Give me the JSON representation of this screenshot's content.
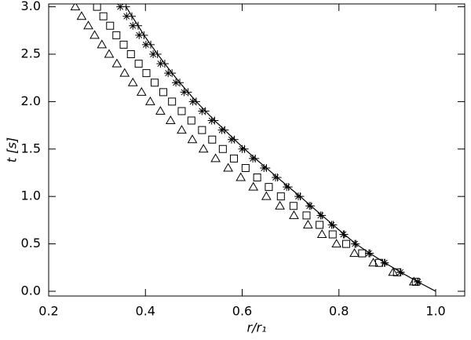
{
  "chart_data": {
    "type": "scatter",
    "xlabel": "r/r₁",
    "ylabel": "t [s]",
    "xlim": [
      0.2,
      1.06
    ],
    "ylim": [
      -0.05,
      3.03
    ],
    "xticks": [
      0.2,
      0.4,
      0.6,
      0.8,
      {
        "value": 1,
        "label": "1.0"
      }
    ],
    "yticks": [
      {
        "value": 0,
        "label": "0.0"
      },
      0.5,
      {
        "value": 1,
        "label": "1.0"
      },
      1.5,
      {
        "value": 2,
        "label": "2.0"
      },
      2.5,
      {
        "value": 3,
        "label": "3.0"
      }
    ],
    "series": [
      {
        "marker": "line",
        "color": "#000000",
        "x": [
          1.0,
          0.963,
          0.928,
          0.895,
          0.864,
          0.835,
          0.811,
          0.788,
          0.765,
          0.742,
          0.72,
          0.696,
          0.673,
          0.65,
          0.627,
          0.605,
          0.584,
          0.564,
          0.543,
          0.524,
          0.505,
          0.488,
          0.471,
          0.455,
          0.44,
          0.425,
          0.411,
          0.397,
          0.385,
          0.372,
          0.36
        ],
        "y": [
          0,
          0.1,
          0.2,
          0.3,
          0.4,
          0.5,
          0.6,
          0.7,
          0.8,
          0.9,
          1.0,
          1.1,
          1.2,
          1.3,
          1.4,
          1.5,
          1.6,
          1.7,
          1.8,
          1.9,
          2.0,
          2.1,
          2.2,
          2.3,
          2.4,
          2.5,
          2.6,
          2.7,
          2.8,
          2.9,
          3.0
        ]
      },
      {
        "marker": "plus",
        "color": "#000000",
        "x": [
          0.963,
          0.928,
          0.895,
          0.864,
          0.835,
          0.811,
          0.788,
          0.765,
          0.742,
          0.72,
          0.696,
          0.673,
          0.65,
          0.627,
          0.605,
          0.584,
          0.564,
          0.543,
          0.524,
          0.505,
          0.488,
          0.471,
          0.455,
          0.44,
          0.425,
          0.411,
          0.397,
          0.385,
          0.372,
          0.36
        ],
        "y": [
          0.1,
          0.2,
          0.3,
          0.4,
          0.5,
          0.6,
          0.7,
          0.8,
          0.9,
          1.0,
          1.1,
          1.2,
          1.3,
          1.4,
          1.5,
          1.6,
          1.7,
          1.8,
          1.9,
          2.0,
          2.1,
          2.2,
          2.3,
          2.4,
          2.5,
          2.6,
          2.7,
          2.8,
          2.9,
          3.0
        ]
      },
      {
        "marker": "asterisk",
        "color": "#000000",
        "x": [
          0.963,
          0.927,
          0.894,
          0.862,
          0.833,
          0.809,
          0.785,
          0.762,
          0.739,
          0.716,
          0.692,
          0.669,
          0.645,
          0.622,
          0.6,
          0.578,
          0.558,
          0.537,
          0.517,
          0.498,
          0.48,
          0.463,
          0.447,
          0.431,
          0.416,
          0.401,
          0.387,
          0.374,
          0.361,
          0.348
        ],
        "y": [
          0.1,
          0.2,
          0.3,
          0.4,
          0.5,
          0.6,
          0.7,
          0.8,
          0.9,
          1.0,
          1.1,
          1.2,
          1.3,
          1.4,
          1.5,
          1.6,
          1.7,
          1.8,
          1.9,
          2.0,
          2.1,
          2.2,
          2.3,
          2.4,
          2.5,
          2.6,
          2.7,
          2.8,
          2.9,
          3.0
        ]
      },
      {
        "marker": "square",
        "color": "#000000",
        "x": [
          0.959,
          0.92,
          0.883,
          0.848,
          0.815,
          0.787,
          0.76,
          0.733,
          0.706,
          0.68,
          0.655,
          0.631,
          0.607,
          0.583,
          0.56,
          0.538,
          0.517,
          0.495,
          0.475,
          0.455,
          0.437,
          0.419,
          0.402,
          0.386,
          0.37,
          0.355,
          0.34,
          0.327,
          0.313,
          0.3
        ],
        "y": [
          0.1,
          0.2,
          0.3,
          0.4,
          0.5,
          0.6,
          0.7,
          0.8,
          0.9,
          1.0,
          1.1,
          1.2,
          1.3,
          1.4,
          1.5,
          1.6,
          1.7,
          1.8,
          1.9,
          2.0,
          2.1,
          2.2,
          2.3,
          2.4,
          2.5,
          2.6,
          2.7,
          2.8,
          2.9,
          3.0
        ]
      },
      {
        "marker": "triangle",
        "color": "#000000",
        "x": [
          0.955,
          0.912,
          0.871,
          0.832,
          0.795,
          0.765,
          0.736,
          0.707,
          0.678,
          0.65,
          0.623,
          0.597,
          0.571,
          0.545,
          0.52,
          0.497,
          0.475,
          0.452,
          0.431,
          0.41,
          0.392,
          0.374,
          0.357,
          0.341,
          0.325,
          0.31,
          0.295,
          0.282,
          0.268,
          0.255
        ],
        "y": [
          0.1,
          0.2,
          0.3,
          0.4,
          0.5,
          0.6,
          0.7,
          0.8,
          0.9,
          1.0,
          1.1,
          1.2,
          1.3,
          1.4,
          1.5,
          1.6,
          1.7,
          1.8,
          1.9,
          2.0,
          2.1,
          2.2,
          2.3,
          2.4,
          2.5,
          2.6,
          2.7,
          2.8,
          2.9,
          3.0
        ]
      }
    ]
  }
}
